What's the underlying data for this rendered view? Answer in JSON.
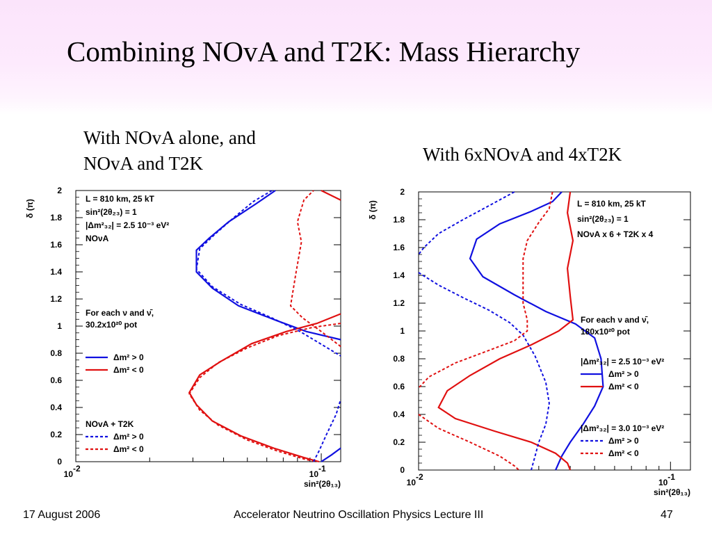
{
  "slide": {
    "title": "Combining NOvA and T2K:  Mass Hierarchy",
    "caption_left_line1": "With NOvA alone, and",
    "caption_left_line2": "NOvA and T2K",
    "caption_right": "With 6xNOvA and 4xT2K",
    "footer_date": "17 August 2006",
    "footer_center": "Accelerator Neutrino Oscillation Physics Lecture III",
    "footer_page": "47"
  },
  "colors": {
    "positive": "#1010e0",
    "negative": "#e01010",
    "banner": "#fbe4fb"
  },
  "chart_data": [
    {
      "type": "line",
      "xscale": "log",
      "xlim": [
        0.01,
        0.12
      ],
      "ylim": [
        0,
        2
      ],
      "ylabel": "δ (π)",
      "xlabel": "sin²(2θ₁₃)",
      "yticks": [
        "0",
        "0.2",
        "0.4",
        "0.6",
        "0.8",
        "1",
        "1.2",
        "1.4",
        "1.6",
        "1.8",
        "2"
      ],
      "xticks": [
        {
          "base": "10",
          "exp": "-2",
          "value": 0.01
        },
        {
          "base": "10",
          "exp": "-1",
          "value": 0.1
        }
      ],
      "info_lines": [
        "L = 810 km, 25 kT",
        "sin²(2θ₂₃) = 1",
        "|Δm²₃₂| = 2.5 10⁻³ eV²",
        "NOνA"
      ],
      "exposure_lines": [
        "For each ν and ν̄,",
        "30.2x10²⁰ pot"
      ],
      "legend_groups": [
        {
          "title": "",
          "entries": [
            {
              "label": "Δm² > 0",
              "style": "solid",
              "color": "#1010e0"
            },
            {
              "label": "Δm² < 0",
              "style": "solid",
              "color": "#e01010"
            }
          ]
        },
        {
          "title": "NOvA + T2K",
          "entries": [
            {
              "label": "Δm² > 0",
              "style": "dashed",
              "color": "#1010e0"
            },
            {
              "label": "Δm² < 0",
              "style": "dashed",
              "color": "#e01010"
            }
          ]
        }
      ],
      "series": [
        {
          "legend": "NOvA Δm²>0",
          "style": "solid",
          "color": "#1010e0",
          "points": [
            [
              0.065,
              2.0
            ],
            [
              0.054,
              1.9
            ],
            [
              0.042,
              1.77
            ],
            [
              0.035,
              1.65
            ],
            [
              0.031,
              1.56
            ],
            [
              0.031,
              1.4
            ],
            [
              0.036,
              1.28
            ],
            [
              0.046,
              1.15
            ],
            [
              0.066,
              1.04
            ],
            [
              0.087,
              0.96
            ],
            [
              0.12,
              0.9
            ]
          ]
        },
        {
          "legend": "NOvA Δm²<0",
          "style": "solid",
          "color": "#e01010",
          "points": [
            [
              0.12,
              1.09
            ],
            [
              0.096,
              1.02
            ],
            [
              0.072,
              0.96
            ],
            [
              0.052,
              0.87
            ],
            [
              0.039,
              0.74
            ],
            [
              0.032,
              0.64
            ],
            [
              0.029,
              0.51
            ],
            [
              0.031,
              0.42
            ],
            [
              0.036,
              0.3
            ],
            [
              0.047,
              0.19
            ],
            [
              0.064,
              0.1
            ],
            [
              0.085,
              0.03
            ],
            [
              0.098,
              0.0
            ]
          ]
        },
        {
          "legend": "NOvA+T2K Δm²>0",
          "style": "dashed",
          "color": "#1010e0",
          "points": [
            [
              0.063,
              2.0
            ],
            [
              0.053,
              1.92
            ],
            [
              0.044,
              1.8
            ],
            [
              0.037,
              1.68
            ],
            [
              0.032,
              1.57
            ],
            [
              0.031,
              1.42
            ],
            [
              0.036,
              1.29
            ],
            [
              0.047,
              1.16
            ],
            [
              0.063,
              1.06
            ],
            [
              0.082,
              0.96
            ],
            [
              0.12,
              0.78
            ]
          ]
        },
        {
          "legend": "NOvA+T2K Δm²<0",
          "style": "dashed",
          "color": "#e01010",
          "points": [
            [
              0.12,
              0.85
            ],
            [
              0.1,
              0.96
            ],
            [
              0.084,
              1.06
            ],
            [
              0.075,
              1.15
            ],
            [
              0.079,
              1.4
            ],
            [
              0.083,
              1.62
            ],
            [
              0.08,
              1.77
            ],
            [
              0.085,
              1.93
            ],
            [
              0.093,
              2.0
            ]
          ]
        },
        {
          "legend": "NOvA+T2K Δm²<0 (lower)",
          "style": "dashed",
          "color": "#e01010",
          "points": [
            [
              0.12,
              1.02
            ],
            [
              0.092,
              0.99
            ],
            [
              0.067,
              0.93
            ],
            [
              0.05,
              0.84
            ],
            [
              0.038,
              0.73
            ],
            [
              0.032,
              0.62
            ],
            [
              0.029,
              0.5
            ],
            [
              0.032,
              0.38
            ],
            [
              0.038,
              0.27
            ],
            [
              0.05,
              0.16
            ],
            [
              0.066,
              0.08
            ],
            [
              0.085,
              0.02
            ],
            [
              0.095,
              0.0
            ]
          ]
        },
        {
          "legend": "NOvA+T2K Δm²>0 (lower)",
          "style": "dashed",
          "color": "#1010e0",
          "points": [
            [
              0.093,
              0.0
            ],
            [
              0.098,
              0.08
            ],
            [
              0.105,
              0.2
            ],
            [
              0.115,
              0.35
            ],
            [
              0.12,
              0.46
            ]
          ]
        },
        {
          "legend": "NOvA Δm²>0 (lower)",
          "style": "solid",
          "color": "#1010e0",
          "points": [
            [
              0.1,
              0.0
            ],
            [
              0.11,
              0.05
            ],
            [
              0.12,
              0.1
            ]
          ]
        },
        {
          "legend": "NOvA Δm²<0 (top)",
          "style": "solid",
          "color": "#e01010",
          "points": [
            [
              0.1,
              2.0
            ],
            [
              0.12,
              1.93
            ]
          ]
        }
      ]
    },
    {
      "type": "line",
      "xscale": "log",
      "xlim": [
        0.01,
        0.12
      ],
      "ylim": [
        0,
        2
      ],
      "ylabel": "δ (π)",
      "xlabel": "sin²(2θ₁₃)",
      "yticks": [
        "0",
        "0.2",
        "0.4",
        "0.6",
        "0.8",
        "1",
        "1.2",
        "1.4",
        "1.6",
        "1.8",
        "2"
      ],
      "xticks": [
        {
          "base": "10",
          "exp": "-2",
          "value": 0.01
        },
        {
          "base": "10",
          "exp": "-1",
          "value": 0.1
        }
      ],
      "info_lines": [
        "L = 810 km, 25 kT",
        "sin²(2θ₂₃) = 1",
        "NOνA x 6 + T2K x 4"
      ],
      "exposure_lines": [
        "For each ν and ν̄,",
        "180x10²⁰ pot"
      ],
      "legend_groups": [
        {
          "title": "|Δm²₃₂| = 2.5 10⁻³ eV²",
          "entries": [
            {
              "label": "Δm² > 0",
              "style": "solid",
              "color": "#1010e0"
            },
            {
              "label": "Δm² < 0",
              "style": "solid",
              "color": "#e01010"
            }
          ]
        },
        {
          "title": "|Δm²₃₂| = 3.0 10⁻³ eV²",
          "entries": [
            {
              "label": "Δm² > 0",
              "style": "dashed",
              "color": "#1010e0"
            },
            {
              "label": "Δm² < 0",
              "style": "dashed",
              "color": "#e01010"
            }
          ]
        }
      ],
      "series": [
        {
          "legend": "2.5 Δm²>0",
          "style": "solid",
          "color": "#1010e0",
          "points": [
            [
              0.037,
              2.0
            ],
            [
              0.034,
              1.93
            ],
            [
              0.028,
              1.86
            ],
            [
              0.021,
              1.77
            ],
            [
              0.017,
              1.66
            ],
            [
              0.016,
              1.52
            ],
            [
              0.018,
              1.39
            ],
            [
              0.024,
              1.26
            ],
            [
              0.032,
              1.14
            ],
            [
              0.042,
              1.05
            ],
            [
              0.05,
              0.95
            ],
            [
              0.053,
              0.8
            ],
            [
              0.054,
              0.6
            ],
            [
              0.05,
              0.46
            ],
            [
              0.045,
              0.33
            ],
            [
              0.04,
              0.2
            ],
            [
              0.037,
              0.1
            ],
            [
              0.035,
              0.0
            ]
          ]
        },
        {
          "legend": "2.5 Δm²<0",
          "style": "solid",
          "color": "#e01010",
          "points": [
            [
              0.04,
              2.0
            ],
            [
              0.039,
              1.85
            ],
            [
              0.041,
              1.65
            ],
            [
              0.039,
              1.45
            ],
            [
              0.04,
              1.25
            ],
            [
              0.041,
              1.08
            ],
            [
              0.036,
              1.0
            ],
            [
              0.028,
              0.9
            ],
            [
              0.021,
              0.8
            ],
            [
              0.016,
              0.68
            ],
            [
              0.013,
              0.57
            ],
            [
              0.012,
              0.45
            ],
            [
              0.014,
              0.37
            ],
            [
              0.02,
              0.28
            ],
            [
              0.028,
              0.2
            ],
            [
              0.035,
              0.12
            ],
            [
              0.039,
              0.05
            ],
            [
              0.04,
              0.0
            ]
          ]
        },
        {
          "legend": "3.0 Δm²>0",
          "style": "dashed",
          "color": "#1010e0",
          "points": [
            [
              0.024,
              2.0
            ],
            [
              0.019,
              1.9
            ],
            [
              0.015,
              1.8
            ],
            [
              0.012,
              1.7
            ],
            [
              0.0105,
              1.6
            ],
            [
              0.01,
              1.55
            ]
          ]
        },
        {
          "legend": "3.0 Δm²>0 (lower)",
          "style": "dashed",
          "color": "#1010e0",
          "points": [
            [
              0.01,
              1.42
            ],
            [
              0.012,
              1.33
            ],
            [
              0.015,
              1.24
            ],
            [
              0.019,
              1.15
            ],
            [
              0.023,
              1.06
            ],
            [
              0.026,
              0.97
            ],
            [
              0.029,
              0.82
            ],
            [
              0.032,
              0.63
            ],
            [
              0.033,
              0.48
            ],
            [
              0.032,
              0.33
            ],
            [
              0.03,
              0.2
            ],
            [
              0.029,
              0.1
            ],
            [
              0.028,
              0.0
            ]
          ]
        },
        {
          "legend": "3.0 Δm²<0",
          "style": "dashed",
          "color": "#e01010",
          "points": [
            [
              0.034,
              2.0
            ],
            [
              0.033,
              1.88
            ],
            [
              0.03,
              1.78
            ],
            [
              0.027,
              1.65
            ],
            [
              0.026,
              1.52
            ],
            [
              0.026,
              1.38
            ],
            [
              0.026,
              1.2
            ],
            [
              0.027,
              1.08
            ],
            [
              0.027,
              1.0
            ],
            [
              0.024,
              0.93
            ],
            [
              0.019,
              0.86
            ],
            [
              0.014,
              0.77
            ],
            [
              0.011,
              0.67
            ],
            [
              0.01,
              0.59
            ]
          ]
        },
        {
          "legend": "3.0 Δm²<0 (lower)",
          "style": "dashed",
          "color": "#e01010",
          "points": [
            [
              0.01,
              0.4
            ],
            [
              0.012,
              0.3
            ],
            [
              0.016,
              0.2
            ],
            [
              0.021,
              0.1
            ],
            [
              0.024,
              0.03
            ],
            [
              0.025,
              0.0
            ]
          ]
        }
      ]
    }
  ]
}
